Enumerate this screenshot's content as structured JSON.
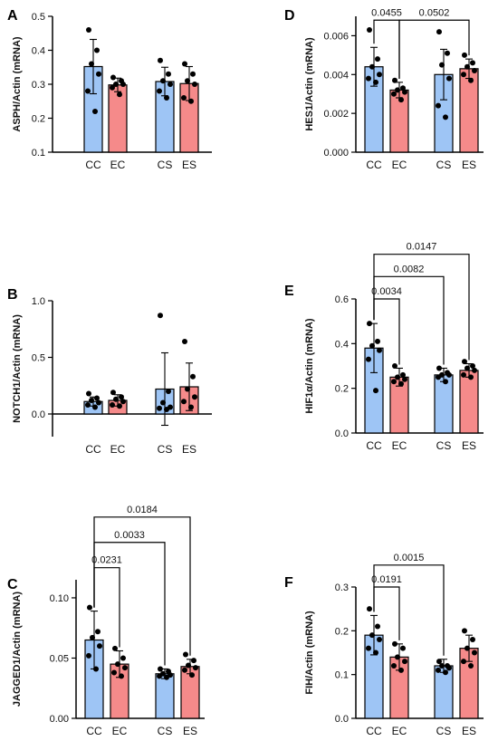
{
  "colors": {
    "control": "#9ec5f5",
    "exposed": "#f58a8a"
  },
  "chart_data": [
    {
      "panel": "A",
      "type": "bar",
      "ylabel": "ASPH/Actin (mRNA)",
      "categories": [
        "CC",
        "EC",
        "CS",
        "ES"
      ],
      "ylim": [
        0.1,
        0.5
      ],
      "yticks": [
        "0.1",
        "0.2",
        "0.3",
        "0.4",
        "0.5"
      ],
      "ytick_values": [
        0.1,
        0.2,
        0.3,
        0.4,
        0.5
      ],
      "values": [
        0.352,
        0.298,
        0.308,
        0.302
      ],
      "sd": [
        0.08,
        0.02,
        0.042,
        0.05
      ],
      "points": [
        [
          0.46,
          0.4,
          0.36,
          0.33,
          0.28,
          0.22
        ],
        [
          0.32,
          0.31,
          0.3,
          0.3,
          0.29,
          0.27
        ],
        [
          0.37,
          0.33,
          0.31,
          0.3,
          0.28,
          0.26
        ],
        [
          0.36,
          0.33,
          0.31,
          0.3,
          0.26,
          0.25
        ]
      ],
      "comparisons": []
    },
    {
      "panel": "D",
      "type": "bar",
      "ylabel": "HES1/Actin (mRNA)",
      "categories": [
        "CC",
        "EC",
        "CS",
        "ES"
      ],
      "ylim": [
        0,
        0.007
      ],
      "yticks": [
        "0.000",
        "0.002",
        "0.004",
        "0.006"
      ],
      "ytick_values": [
        0,
        0.002,
        0.004,
        0.006
      ],
      "values": [
        0.0044,
        0.0032,
        0.004,
        0.0043
      ],
      "sd": [
        0.001,
        0.0004,
        0.0013,
        0.0005
      ],
      "points": [
        [
          0.0063,
          0.0048,
          0.0044,
          0.004,
          0.0038,
          0.0036
        ],
        [
          0.0037,
          0.0033,
          0.0032,
          0.0031,
          0.003,
          0.0027
        ],
        [
          0.0062,
          0.0051,
          0.0045,
          0.0038,
          0.0024,
          0.0018
        ],
        [
          0.005,
          0.0046,
          0.0044,
          0.0042,
          0.004,
          0.0037
        ]
      ],
      "comparisons": [
        {
          "from": 0,
          "to": 1,
          "label": "0.0455",
          "y": 0.0068
        },
        {
          "from": 1,
          "to": 3,
          "label": "0.0502",
          "y": 0.0068
        }
      ]
    },
    {
      "panel": "B",
      "type": "bar",
      "ylabel": "NOTCH1/Actin (mRNA)",
      "categories": [
        "CC",
        "EC",
        "CS",
        "ES"
      ],
      "ylim": [
        -0.2,
        1.0
      ],
      "yticks": [
        "0.0",
        "0.5",
        "1.0"
      ],
      "ytick_values": [
        0,
        0.5,
        1.0
      ],
      "values": [
        0.11,
        0.12,
        0.22,
        0.24
      ],
      "sd": [
        0.04,
        0.05,
        0.32,
        0.21
      ],
      "points": [
        [
          0.18,
          0.14,
          0.12,
          0.1,
          0.08,
          0.06
        ],
        [
          0.19,
          0.15,
          0.13,
          0.11,
          0.08,
          0.07
        ],
        [
          0.87,
          0.2,
          0.1,
          0.06,
          0.05,
          0.04
        ],
        [
          0.64,
          0.33,
          0.22,
          0.15,
          0.11,
          0.06
        ]
      ],
      "comparisons": []
    },
    {
      "panel": "E",
      "type": "bar",
      "ylabel": "HIF1α/Actin (mRNA)",
      "categories": [
        "CC",
        "EC",
        "CS",
        "ES"
      ],
      "ylim": [
        0,
        0.6
      ],
      "yticks": [
        "0.0",
        "0.2",
        "0.4",
        "0.6"
      ],
      "ytick_values": [
        0,
        0.2,
        0.4,
        0.6
      ],
      "values": [
        0.38,
        0.25,
        0.26,
        0.28
      ],
      "sd": [
        0.11,
        0.04,
        0.03,
        0.03
      ],
      "points": [
        [
          0.49,
          0.41,
          0.39,
          0.37,
          0.33,
          0.19
        ],
        [
          0.3,
          0.26,
          0.25,
          0.24,
          0.23,
          0.22
        ],
        [
          0.29,
          0.27,
          0.26,
          0.26,
          0.25,
          0.23
        ],
        [
          0.32,
          0.3,
          0.29,
          0.28,
          0.26,
          0.25
        ]
      ],
      "comparisons": [
        {
          "from": 0,
          "to": 1,
          "label": "0.0034",
          "y": 0.6
        },
        {
          "from": 0,
          "to": 2,
          "label": "0.0082",
          "y": 0.7
        },
        {
          "from": 0,
          "to": 3,
          "label": "0.0147",
          "y": 0.8
        }
      ]
    },
    {
      "panel": "C",
      "type": "bar",
      "ylabel": "JAGGED1/Actin (mRNA)",
      "categories": [
        "CC",
        "EC",
        "CS",
        "ES"
      ],
      "ylim": [
        0,
        0.115
      ],
      "yticks": [
        "0.00",
        "0.05",
        "0.10"
      ],
      "ytick_values": [
        0,
        0.05,
        0.1
      ],
      "values": [
        0.065,
        0.045,
        0.037,
        0.043
      ],
      "sd": [
        0.024,
        0.011,
        0.004,
        0.006
      ],
      "points": [
        [
          0.092,
          0.072,
          0.067,
          0.06,
          0.052,
          0.041
        ],
        [
          0.058,
          0.05,
          0.045,
          0.042,
          0.038,
          0.035
        ],
        [
          0.041,
          0.039,
          0.037,
          0.036,
          0.035,
          0.034
        ],
        [
          0.053,
          0.048,
          0.044,
          0.042,
          0.04,
          0.036
        ]
      ],
      "comparisons": [
        {
          "from": 0,
          "to": 1,
          "label": "0.0231",
          "y": 0.125
        },
        {
          "from": 0,
          "to": 2,
          "label": "0.0033",
          "y": 0.146
        },
        {
          "from": 0,
          "to": 3,
          "label": "0.0184",
          "y": 0.167
        }
      ]
    },
    {
      "panel": "F",
      "type": "bar",
      "ylabel": "FIH/Actin (mRNA)",
      "categories": [
        "CC",
        "EC",
        "CS",
        "ES"
      ],
      "ylim": [
        0,
        0.3
      ],
      "yticks": [
        "0.0",
        "0.1",
        "0.2",
        "0.3"
      ],
      "ytick_values": [
        0,
        0.1,
        0.2,
        0.3
      ],
      "values": [
        0.19,
        0.14,
        0.12,
        0.16
      ],
      "sd": [
        0.045,
        0.03,
        0.015,
        0.03
      ],
      "points": [
        [
          0.25,
          0.21,
          0.19,
          0.18,
          0.16,
          0.15
        ],
        [
          0.17,
          0.16,
          0.14,
          0.13,
          0.12,
          0.11
        ],
        [
          0.13,
          0.12,
          0.12,
          0.115,
          0.11,
          0.105
        ],
        [
          0.2,
          0.18,
          0.16,
          0.15,
          0.13,
          0.12
        ]
      ],
      "comparisons": [
        {
          "from": 0,
          "to": 1,
          "label": "0.0191",
          "y": 0.3
        },
        {
          "from": 0,
          "to": 2,
          "label": "0.0015",
          "y": 0.35
        }
      ]
    }
  ]
}
